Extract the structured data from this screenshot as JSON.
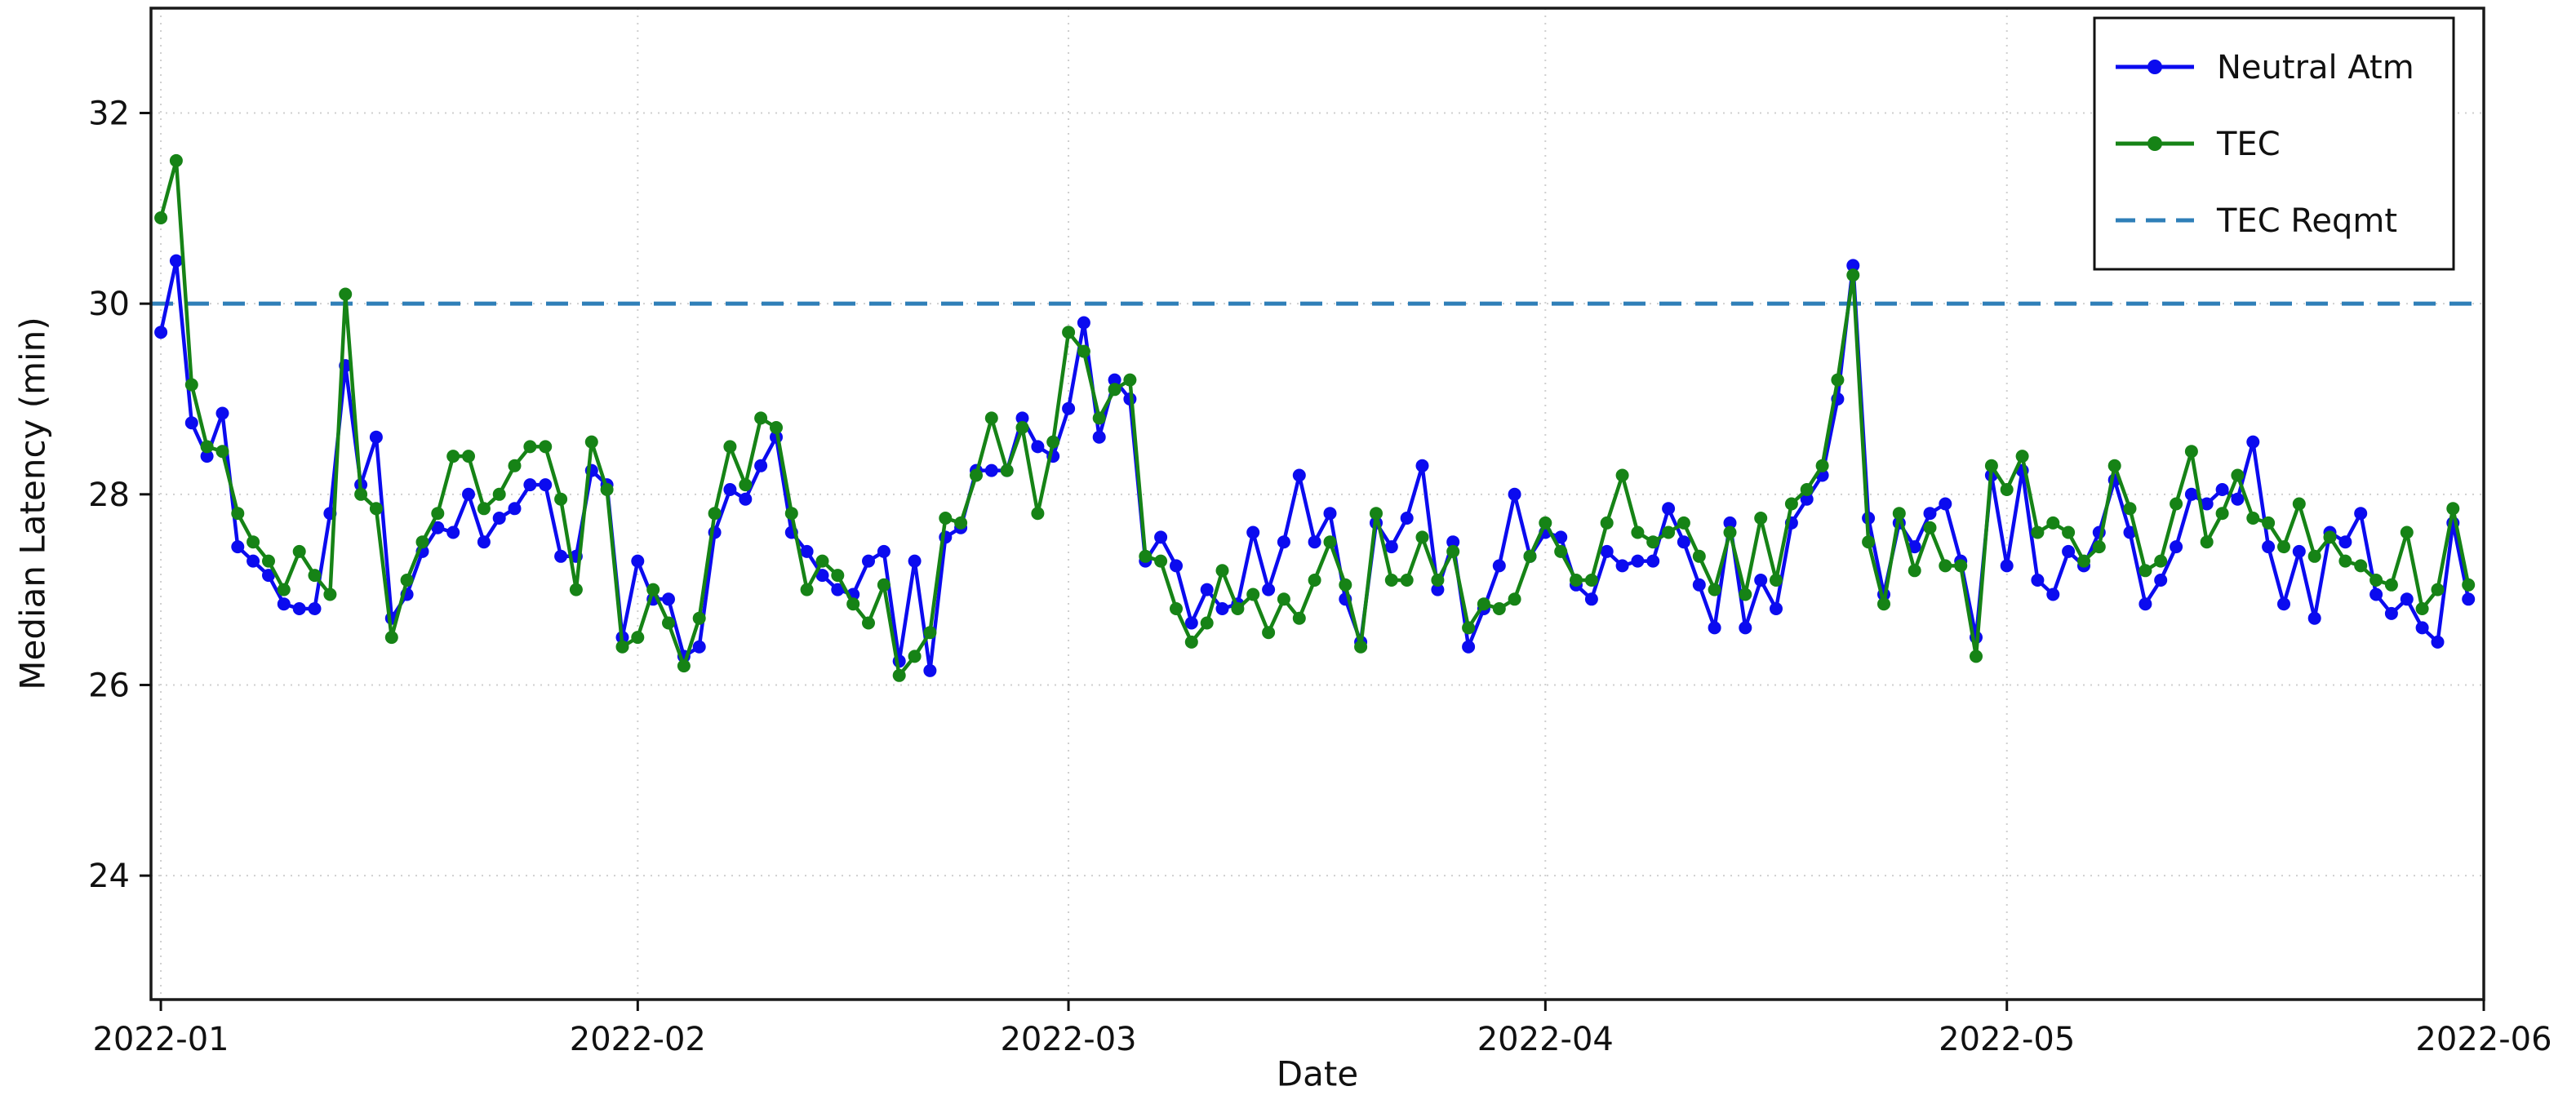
{
  "chart_data": {
    "type": "line",
    "title": "",
    "xlabel": "Date",
    "ylabel": "Median Latency (min)",
    "x_start_date": "2022-01-01",
    "x_unit": "day",
    "x_tick_days": [
      0,
      31,
      59,
      90,
      120,
      151
    ],
    "x_tick_labels": [
      "2022-01",
      "2022-02",
      "2022-03",
      "2022-04",
      "2022-05",
      "2022-06"
    ],
    "y_ticks": [
      24,
      26,
      28,
      30,
      32
    ],
    "y_tick_labels": [
      "24",
      "26",
      "28",
      "30",
      "32"
    ],
    "ylim": [
      22.7,
      33.1
    ],
    "xlim_days": [
      -0.64,
      151.0
    ],
    "grid": true,
    "grid_color": "#cfcfcf",
    "frame_color": "#1a1a1a",
    "legend_position": "upper right",
    "series": [
      {
        "name": "Neutral Atm",
        "color": "#0b0bef",
        "style": "solid",
        "marker": "circle",
        "values": [
          29.7,
          30.45,
          28.75,
          28.4,
          28.85,
          27.45,
          27.3,
          27.15,
          26.85,
          26.8,
          26.8,
          27.8,
          29.35,
          28.1,
          28.6,
          26.7,
          26.95,
          27.4,
          27.65,
          27.6,
          28.0,
          27.5,
          27.75,
          27.85,
          28.1,
          28.1,
          27.35,
          27.35,
          28.25,
          28.1,
          26.5,
          27.3,
          26.9,
          26.9,
          26.3,
          26.4,
          27.6,
          28.05,
          27.95,
          28.3,
          28.6,
          27.6,
          27.4,
          27.15,
          27.0,
          26.95,
          27.3,
          27.4,
          26.25,
          27.3,
          26.15,
          27.55,
          27.65,
          28.25,
          28.25,
          28.25,
          28.8,
          28.5,
          28.4,
          28.9,
          29.8,
          28.6,
          29.2,
          29.0,
          27.3,
          27.55,
          27.25,
          26.65,
          27.0,
          26.8,
          26.85,
          27.6,
          27.0,
          27.5,
          28.2,
          27.5,
          27.8,
          26.9,
          26.45,
          27.7,
          27.45,
          27.75,
          28.3,
          27.0,
          27.5,
          26.4,
          26.8,
          27.25,
          28.0,
          27.35,
          27.6,
          27.55,
          27.05,
          26.9,
          27.4,
          27.25,
          27.3,
          27.3,
          27.85,
          27.5,
          27.05,
          26.6,
          27.7,
          26.6,
          27.1,
          26.8,
          27.7,
          27.95,
          28.2,
          29.0,
          30.4,
          27.75,
          26.95,
          27.7,
          27.45,
          27.8,
          27.9,
          27.3,
          26.5,
          28.2,
          27.25,
          28.25,
          27.1,
          26.95,
          27.4,
          27.25,
          27.6,
          28.15,
          27.6,
          26.85,
          27.1,
          27.45,
          28.0,
          27.9,
          28.05,
          27.95,
          28.55,
          27.45,
          26.85,
          27.4,
          26.7,
          27.6,
          27.5,
          27.8,
          26.95,
          26.75,
          26.9,
          26.6,
          26.45,
          27.7,
          26.9
        ]
      },
      {
        "name": "TEC",
        "color": "#168316",
        "style": "solid",
        "marker": "circle",
        "values": [
          30.9,
          31.5,
          29.15,
          28.5,
          28.45,
          27.8,
          27.5,
          27.3,
          27.0,
          27.4,
          27.15,
          26.95,
          30.1,
          28.0,
          27.85,
          26.5,
          27.1,
          27.5,
          27.8,
          28.4,
          28.4,
          27.85,
          28.0,
          28.3,
          28.5,
          28.5,
          27.95,
          27.0,
          28.55,
          28.05,
          26.4,
          26.5,
          27.0,
          26.65,
          26.2,
          26.7,
          27.8,
          28.5,
          28.1,
          28.8,
          28.7,
          27.8,
          27.0,
          27.3,
          27.15,
          26.85,
          26.65,
          27.05,
          26.1,
          26.3,
          26.55,
          27.75,
          27.7,
          28.2,
          28.8,
          28.25,
          28.7,
          27.8,
          28.55,
          29.7,
          29.5,
          28.8,
          29.1,
          29.2,
          27.35,
          27.3,
          26.8,
          26.45,
          26.65,
          27.2,
          26.8,
          26.95,
          26.55,
          26.9,
          26.7,
          27.1,
          27.5,
          27.05,
          26.4,
          27.8,
          27.1,
          27.1,
          27.55,
          27.1,
          27.4,
          26.6,
          26.85,
          26.8,
          26.9,
          27.35,
          27.7,
          27.4,
          27.1,
          27.1,
          27.7,
          28.2,
          27.6,
          27.5,
          27.6,
          27.7,
          27.35,
          27.0,
          27.6,
          26.95,
          27.75,
          27.1,
          27.9,
          28.05,
          28.3,
          29.2,
          30.3,
          27.5,
          26.85,
          27.8,
          27.2,
          27.65,
          27.25,
          27.25,
          26.3,
          28.3,
          28.05,
          28.4,
          27.6,
          27.7,
          27.6,
          27.3,
          27.45,
          28.3,
          27.85,
          27.2,
          27.3,
          27.9,
          28.45,
          27.5,
          27.8,
          28.2,
          27.75,
          27.7,
          27.45,
          27.9,
          27.35,
          27.55,
          27.3,
          27.25,
          27.1,
          27.05,
          27.6,
          26.8,
          27.0,
          27.85,
          27.05
        ]
      },
      {
        "name": "TEC Reqmt",
        "color": "#2f7fb8",
        "style": "dashed",
        "constant_value": 30
      }
    ]
  }
}
